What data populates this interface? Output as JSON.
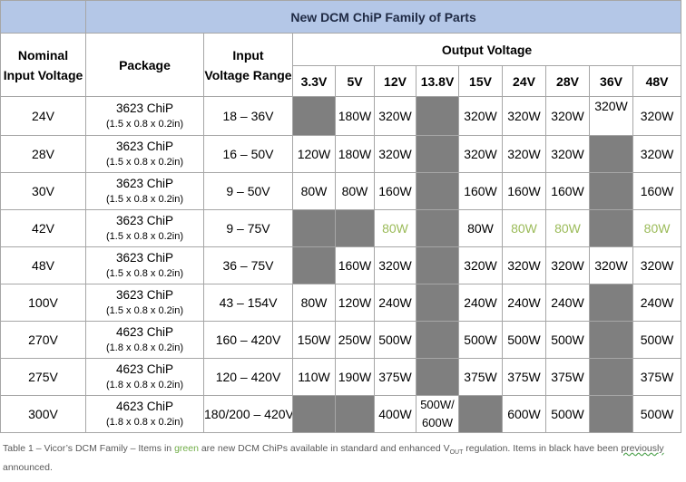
{
  "title": "New DCM ChiP Family of Parts",
  "headers": {
    "nominal_line1": "Nominal",
    "nominal_line2": "Input Voltage",
    "package": "Package",
    "range_line1": "Input",
    "range_line2": "Voltage Range",
    "output": "Output Voltage"
  },
  "output_voltages": [
    "3.3V",
    "5V",
    "12V",
    "13.8V",
    "15V",
    "24V",
    "28V",
    "36V",
    "48V"
  ],
  "rows": [
    {
      "nominal": "24V",
      "pkg": "3623 ChiP",
      "dims": "(1.5 x 0.8 x 0.2in)",
      "range": "18 – 36V",
      "cells": [
        {
          "v": "",
          "gray": true
        },
        {
          "v": "180W"
        },
        {
          "v": "320W"
        },
        {
          "v": "",
          "gray": true
        },
        {
          "v": "320W"
        },
        {
          "v": "320W"
        },
        {
          "v": "320W"
        },
        {
          "v": "320W",
          "top": true
        },
        {
          "v": "320W"
        }
      ]
    },
    {
      "nominal": "28V",
      "pkg": "3623 ChiP",
      "dims": "(1.5 x 0.8 x 0.2in)",
      "range": "16 – 50V",
      "cells": [
        {
          "v": "120W"
        },
        {
          "v": "180W"
        },
        {
          "v": "320W"
        },
        {
          "v": "",
          "gray": true
        },
        {
          "v": "320W"
        },
        {
          "v": "320W"
        },
        {
          "v": "320W"
        },
        {
          "v": "",
          "gray": true
        },
        {
          "v": "320W"
        }
      ]
    },
    {
      "nominal": "30V",
      "pkg": "3623 ChiP",
      "dims": "(1.5 x 0.8 x 0.2in)",
      "range": "9 – 50V",
      "cells": [
        {
          "v": "80W"
        },
        {
          "v": "80W"
        },
        {
          "v": "160W"
        },
        {
          "v": "",
          "gray": true
        },
        {
          "v": "160W"
        },
        {
          "v": "160W"
        },
        {
          "v": "160W"
        },
        {
          "v": "",
          "gray": true
        },
        {
          "v": "160W"
        }
      ]
    },
    {
      "nominal": "42V",
      "pkg": "3623 ChiP",
      "dims": "(1.5 x 0.8 x 0.2in)",
      "range": "9 – 75V",
      "cells": [
        {
          "v": "",
          "gray": true
        },
        {
          "v": "",
          "gray": true
        },
        {
          "v": "80W",
          "new": true
        },
        {
          "v": "",
          "gray": true
        },
        {
          "v": "80W"
        },
        {
          "v": "80W",
          "new": true
        },
        {
          "v": "80W",
          "new": true
        },
        {
          "v": "",
          "gray": true
        },
        {
          "v": "80W",
          "new": true
        }
      ]
    },
    {
      "nominal": "48V",
      "pkg": "3623 ChiP",
      "dims": "(1.5 x 0.8 x 0.2in)",
      "range": "36 – 75V",
      "cells": [
        {
          "v": "",
          "gray": true
        },
        {
          "v": "160W"
        },
        {
          "v": "320W"
        },
        {
          "v": "",
          "gray": true
        },
        {
          "v": "320W"
        },
        {
          "v": "320W"
        },
        {
          "v": "320W"
        },
        {
          "v": "320W"
        },
        {
          "v": "320W"
        }
      ]
    },
    {
      "nominal": "100V",
      "pkg": "3623 ChiP",
      "dims": "(1.5 x 0.8 x 0.2in)",
      "range": "43 – 154V",
      "cells": [
        {
          "v": "80W"
        },
        {
          "v": "120W"
        },
        {
          "v": "240W"
        },
        {
          "v": "",
          "gray": true
        },
        {
          "v": "240W"
        },
        {
          "v": "240W"
        },
        {
          "v": "240W"
        },
        {
          "v": "",
          "gray": true
        },
        {
          "v": "240W"
        }
      ]
    },
    {
      "nominal": "270V",
      "pkg": "4623 ChiP",
      "dims": "(1.8 x 0.8 x 0.2in)",
      "range": "160 – 420V",
      "cells": [
        {
          "v": "150W"
        },
        {
          "v": "250W"
        },
        {
          "v": "500W"
        },
        {
          "v": "",
          "gray": true
        },
        {
          "v": "500W"
        },
        {
          "v": "500W"
        },
        {
          "v": "500W"
        },
        {
          "v": "",
          "gray": true
        },
        {
          "v": "500W"
        }
      ]
    },
    {
      "nominal": "275V",
      "pkg": "4623 ChiP",
      "dims": "(1.8 x 0.8 x 0.2in)",
      "range": "120 – 420V",
      "cells": [
        {
          "v": "110W"
        },
        {
          "v": "190W"
        },
        {
          "v": "375W"
        },
        {
          "v": "",
          "gray": true
        },
        {
          "v": "375W"
        },
        {
          "v": "375W"
        },
        {
          "v": "375W"
        },
        {
          "v": "",
          "gray": true
        },
        {
          "v": "375W"
        }
      ]
    },
    {
      "nominal": "300V",
      "pkg": "4623 ChiP",
      "dims": "(1.8 x 0.8 x 0.2in)",
      "range": "180/200 – 420V",
      "cells": [
        {
          "v": "",
          "gray": true
        },
        {
          "v": "",
          "gray": true
        },
        {
          "v": "400W"
        },
        {
          "v": "500W/ 600W",
          "wrap": true
        },
        {
          "v": "",
          "gray": true
        },
        {
          "v": "600W"
        },
        {
          "v": "500W"
        },
        {
          "v": "",
          "gray": true
        },
        {
          "v": "500W"
        }
      ]
    }
  ],
  "caption": {
    "part1": "Table 1 – Vicor’s DCM Family – Items in ",
    "green_word": "green",
    "part2": " are new DCM ChiPs available in standard and enhanced V",
    "sub": "OUT",
    "part3": " regulation. Items in black have been ",
    "squiggle": "previously",
    "part4": " announced."
  },
  "colors": {
    "header_bg": "#b4c7e7",
    "na_cell": "#7f7f7f",
    "new_item_text": "#9bbb59",
    "border": "#a6a6a6"
  }
}
